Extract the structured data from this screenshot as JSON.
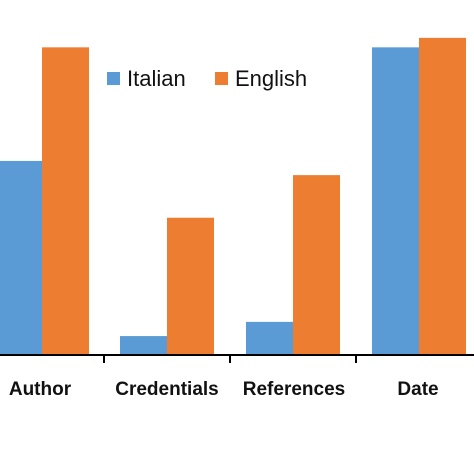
{
  "chart_data": {
    "type": "bar",
    "categories": [
      "Author",
      "Credentials",
      "References",
      "Date"
    ],
    "series": [
      {
        "name": "Italian",
        "color": "#5b9bd5",
        "values": [
          41,
          4,
          7,
          65
        ]
      },
      {
        "name": "English",
        "color": "#ed7d31",
        "values": [
          65,
          29,
          38,
          67
        ]
      }
    ],
    "ylim": [
      0,
      75
    ],
    "legend_position": "top-center",
    "grid": false
  }
}
